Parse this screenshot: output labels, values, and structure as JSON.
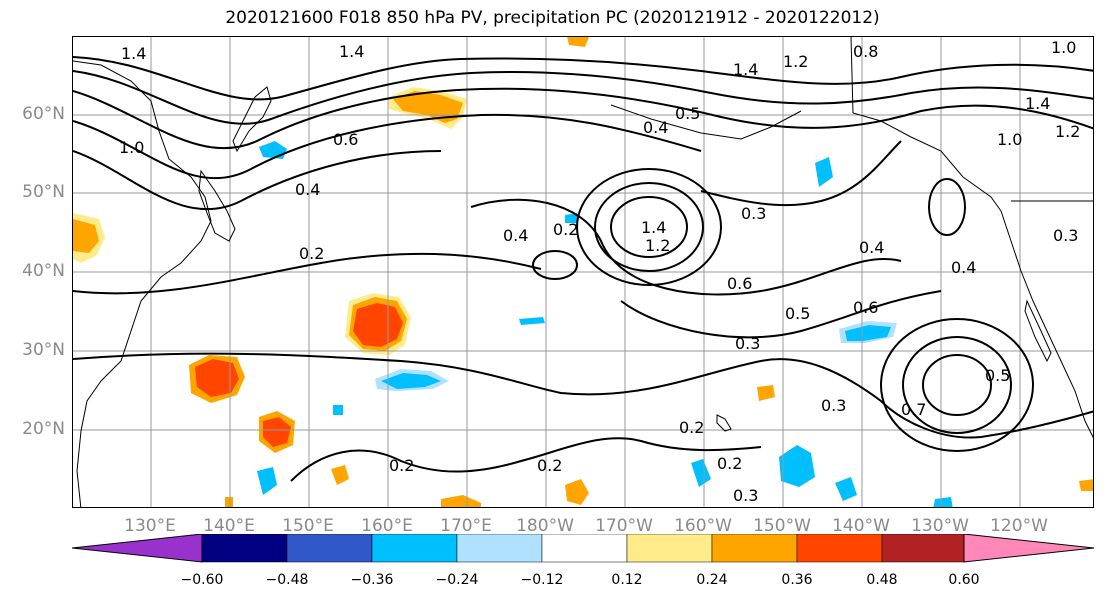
{
  "title": "2020121600 F018 850 hPa PV, precipitation PC (2020121912 - 2020122012)",
  "lat_labels": [
    "60°N",
    "50°N",
    "40°N",
    "30°N",
    "20°N"
  ],
  "lon_labels": [
    "130°E",
    "140°E",
    "150°E",
    "160°E",
    "170°E",
    "180°W",
    "170°W",
    "160°W",
    "150°W",
    "140°W",
    "130°W",
    "120°W"
  ],
  "colorbar": {
    "ticks": [
      "−0.60",
      "−0.48",
      "−0.36",
      "−0.24",
      "−0.12",
      "0.12",
      "0.24",
      "0.36",
      "0.48",
      "0.60"
    ],
    "colors": [
      "#9932cc",
      "#000080",
      "#3158c9",
      "#00bfff",
      "#b0e2ff",
      "#ffffff",
      "#ffeb8a",
      "#ffa500",
      "#ff4500",
      "#b22222",
      "#ff88b8"
    ]
  },
  "contour_labels": [
    "1.4",
    "1.4",
    "1.0",
    "0.6",
    "0.4",
    "0.2",
    "1.4",
    "1.2",
    "0.8",
    "1.0",
    "1.0",
    "1.2",
    "1.4",
    "0.4",
    "0.5",
    "0.4",
    "0.2",
    "0.3",
    "0.4",
    "0.6",
    "0.5",
    "0.6",
    "0.3",
    "0.3",
    "0.4",
    "0.2",
    "0.2",
    "0.2",
    "0.2",
    "0.3",
    "0.3",
    "0.5",
    "0.7",
    "1.4",
    "1.2"
  ],
  "fill_colors": {
    "orange": "#ffa500",
    "red_orange": "#ff4500",
    "yellow": "#ffeb8a",
    "cyan": "#00bfff",
    "light_blue": "#b0e2ff"
  }
}
